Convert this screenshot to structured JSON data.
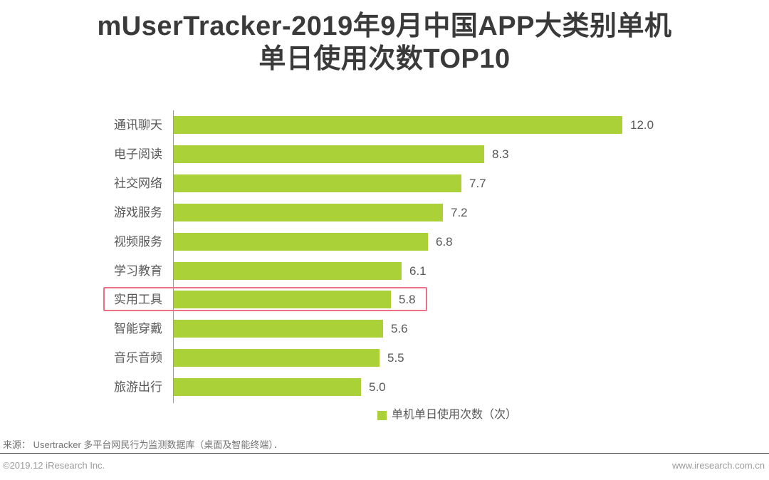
{
  "title": {
    "line1": "mUserTracker-2019年9月中国APP大类别单机",
    "line2": "单日使用次数TOP10"
  },
  "chart_data": {
    "type": "bar",
    "orientation": "horizontal",
    "title": "mUserTracker-2019年9月中国APP大类别单机单日使用次数TOP10",
    "categories": [
      "通讯聊天",
      "电子阅读",
      "社交网络",
      "游戏服务",
      "视频服务",
      "学习教育",
      "实用工具",
      "智能穿戴",
      "音乐音频",
      "旅游出行"
    ],
    "values": [
      12.0,
      8.3,
      7.7,
      7.2,
      6.8,
      6.1,
      5.8,
      5.6,
      5.5,
      5.0
    ],
    "value_labels": [
      "12.0",
      "8.3",
      "7.7",
      "7.2",
      "6.8",
      "6.1",
      "5.8",
      "5.6",
      "5.5",
      "5.0"
    ],
    "highlighted_category": "实用工具",
    "highlighted_index": 6,
    "xlim": [
      0,
      12.6
    ],
    "grid": false,
    "legend_position": "bottom",
    "legend": "单机单日使用次数（次）",
    "bar_color": "#abd139",
    "highlight_box_color": "#ec7186",
    "label_color": "#595757"
  },
  "legend": {
    "label": "单机单日使用次数（次）",
    "swatch_icon": "green-square-icon",
    "swatch_color": "#abd139"
  },
  "footer": {
    "source": "来源： Usertracker 多平台网民行为监测数据库（桌面及智能终端）．",
    "copyright": "©2019.12 iResearch Inc.",
    "website": "www.iresearch.com.cn"
  }
}
